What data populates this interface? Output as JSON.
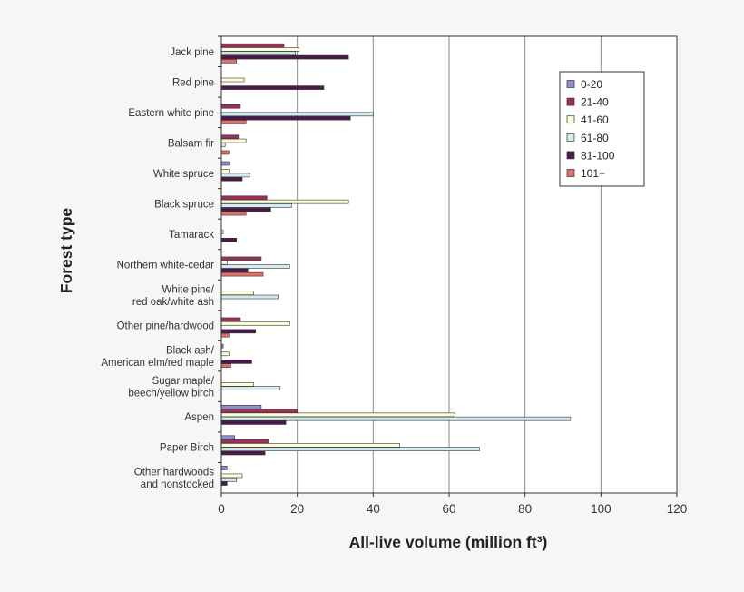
{
  "chart_data": {
    "type": "bar",
    "orientation": "horizontal",
    "xlabel": "All-live volume (million ft³)",
    "ylabel": "Forest type",
    "xlim": [
      0,
      120
    ],
    "xticks": [
      0,
      20,
      40,
      60,
      80,
      100,
      120
    ],
    "grid": "vertical lines",
    "legend_position": "top-right",
    "categories": [
      "Jack pine",
      "Red pine",
      "Eastern white pine",
      "Balsam fir",
      "White spruce",
      "Black spruce",
      "Tamarack",
      "Northern white-cedar",
      "White pine/\nred oak/white ash",
      "Other pine/hardwood",
      "Black ash/\nAmerican elm/red maple",
      "Sugar maple/\nbeech/yellow birch",
      "Aspen",
      "Paper Birch",
      "Other hardwoods\nand nonstocked"
    ],
    "series": [
      {
        "name": "0-20",
        "color": "#8e8fd0",
        "values": [
          0,
          0,
          0,
          0,
          2,
          0,
          0,
          0,
          0,
          0,
          0.5,
          0,
          10.5,
          3.5,
          1.5
        ]
      },
      {
        "name": "21-40",
        "color": "#9b2f5e",
        "values": [
          16.5,
          0,
          5,
          4.5,
          0,
          12,
          0,
          10.5,
          0,
          5,
          0,
          0,
          20,
          12.5,
          0
        ]
      },
      {
        "name": "41-60",
        "color": "#fdfdd8",
        "values": [
          20.5,
          6,
          0,
          6.5,
          2,
          33.5,
          0.5,
          1.5,
          8.5,
          18,
          2,
          8.5,
          61.5,
          47,
          5.5
        ]
      },
      {
        "name": "61-80",
        "color": "#d6ebf0",
        "values": [
          19.5,
          0,
          40,
          1,
          7.5,
          18.5,
          0,
          18,
          15,
          0,
          0,
          15.5,
          92,
          68,
          4
        ]
      },
      {
        "name": "81-100",
        "color": "#4b1a4b",
        "values": [
          33.5,
          27,
          34,
          0,
          5.5,
          13,
          4,
          7,
          0,
          9,
          8,
          0,
          17,
          11.5,
          1.5
        ]
      },
      {
        "name": "101+",
        "color": "#e06f6a",
        "values": [
          4,
          0,
          6.5,
          2,
          0,
          6.5,
          0,
          11,
          0,
          2,
          2.5,
          0,
          0,
          0,
          0
        ]
      }
    ]
  }
}
